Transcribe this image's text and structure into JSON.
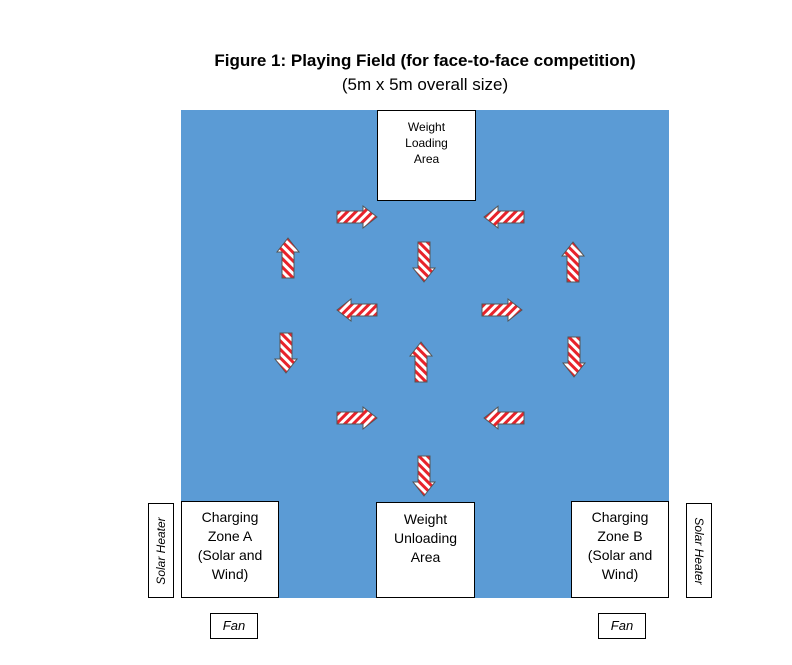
{
  "figure": {
    "title": "Figure 1:  Playing Field (for face-to-face competition)",
    "subtitle": "(5m x 5m overall size)"
  },
  "field": {
    "color": "#5b9bd5"
  },
  "weight_loading_area": {
    "lines": [
      "Weight",
      "Loading",
      "Area"
    ]
  },
  "weight_unloading_area": {
    "lines": [
      "Weight",
      "Unloading",
      "Area"
    ]
  },
  "charging_zone_a": {
    "lines": [
      "Charging",
      "Zone A",
      "(Solar and",
      "Wind)"
    ]
  },
  "charging_zone_b": {
    "lines": [
      "Charging",
      "Zone B",
      "(Solar and",
      "Wind)"
    ]
  },
  "solar_heater_left": {
    "label": "Solar Heater"
  },
  "solar_heater_right": {
    "label": "Solar Heater"
  },
  "fan_left": {
    "label": "Fan"
  },
  "fan_right": {
    "label": "Fan"
  },
  "arrows": [
    {
      "dir": "right"
    },
    {
      "dir": "left"
    },
    {
      "dir": "up"
    },
    {
      "dir": "down"
    },
    {
      "dir": "up"
    },
    {
      "dir": "left"
    },
    {
      "dir": "right"
    },
    {
      "dir": "down"
    },
    {
      "dir": "up"
    },
    {
      "dir": "down"
    },
    {
      "dir": "right"
    },
    {
      "dir": "left"
    },
    {
      "dir": "down"
    }
  ],
  "arrow_colors": {
    "stripe_red": "#e8222a",
    "stripe_white": "#ffffff",
    "outline": "#555555"
  }
}
